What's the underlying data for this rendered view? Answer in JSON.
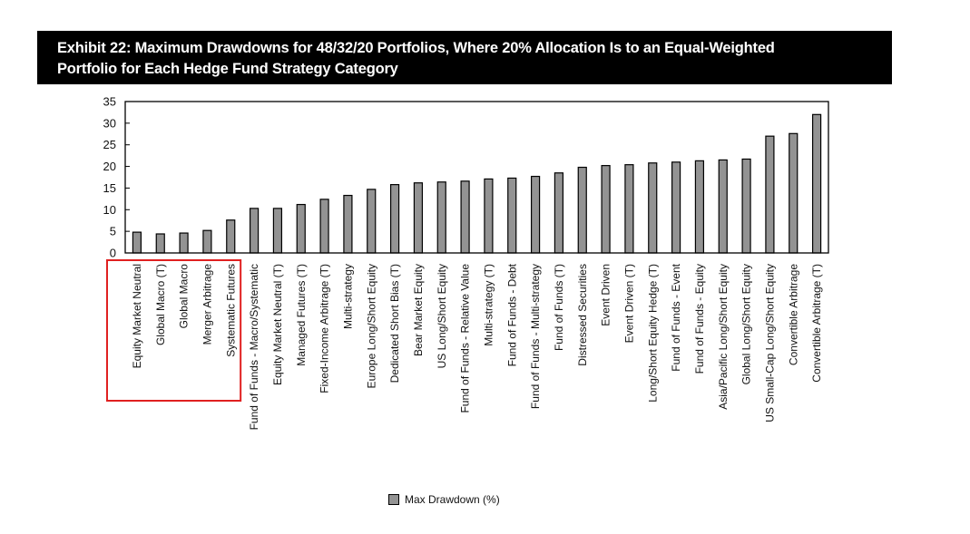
{
  "header": {
    "title_line1": "Exhibit 22: Maximum Drawdowns for 48/32/20 Portfolios, Where 20% Allocation Is to an Equal-Weighted",
    "title_line2": "Portfolio for Each Hedge Fund Strategy Category"
  },
  "colors": {
    "bar_fill": "#939393",
    "bar_stroke": "#000000",
    "highlight_box": "#e02020",
    "title_bg": "#000000",
    "title_fg": "#ffffff"
  },
  "chart_data": {
    "type": "bar",
    "title": "Exhibit 22: Maximum Drawdowns for 48/32/20 Portfolios, Where 20% Allocation Is to an Equal-Weighted Portfolio for Each Hedge Fund Strategy Category",
    "xlabel": "",
    "ylabel": "",
    "ylim": [
      0,
      35
    ],
    "yticks": [
      0,
      5,
      10,
      15,
      20,
      25,
      30,
      35
    ],
    "grid": false,
    "legend_position": "bottom-center",
    "categories": [
      "Equity Market Neutral",
      "Global Macro (T)",
      "Global Macro",
      "Merger Arbitrage",
      "Systematic Futures",
      "Fund of Funds - Macro/Systematic",
      "Equity Market Neutral (T)",
      "Managed Futures (T)",
      "Fixed-Income Arbitrage (T)",
      "Multi-strategy",
      "Europe Long/Short Equity",
      "Dedicated Short Bias (T)",
      "Bear Market Equity",
      "US Long/Short Equity",
      "Fund of Funds - Relative Value",
      "Multi-strategy (T)",
      "Fund of Funds - Debt",
      "Fund of Funds - Multi-strategy",
      "Fund of Funds (T)",
      "Distressed Securities",
      "Event Driven",
      "Event Driven (T)",
      "Long/Short Equity Hedge (T)",
      "Fund of Funds - Event",
      "Fund of Funds - Equity",
      "Asia/Pacific Long/Short Equity",
      "Global Long/Short Equity",
      "US Small-Cap Long/Short Equity",
      "Convertible Arbitrage",
      "Convertible Arbitrage (T)"
    ],
    "series": [
      {
        "name": "Max Drawdown (%)",
        "values": [
          4.8,
          4.4,
          4.6,
          5.2,
          7.6,
          10.3,
          10.3,
          11.2,
          12.4,
          13.3,
          14.7,
          15.8,
          16.2,
          16.4,
          16.6,
          17.1,
          17.3,
          17.7,
          18.5,
          19.8,
          20.2,
          20.4,
          20.8,
          21.0,
          21.3,
          21.5,
          21.7,
          27.0,
          27.6,
          32.0
        ]
      }
    ],
    "annotations": [
      {
        "type": "highlight-box",
        "covers_categories": [
          "Equity Market Neutral",
          "Global Macro (T)",
          "Global Macro",
          "Merger Arbitrage",
          "Systematic Futures"
        ]
      }
    ]
  },
  "legend": {
    "label": "Max Drawdown (%)"
  }
}
